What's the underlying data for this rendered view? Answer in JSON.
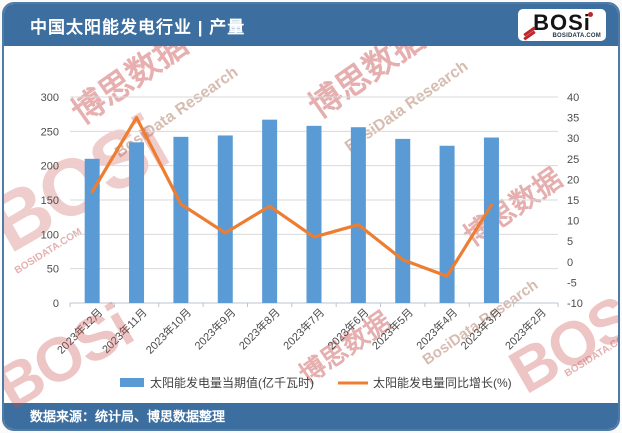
{
  "header": {
    "title": "中国太阳能发电行业 | 产量",
    "logo": {
      "wordmark": "BOSi",
      "domain": "BOSIDATA.COM"
    }
  },
  "footer": {
    "source_label": "数据来源：统计局、博思数据整理"
  },
  "watermarks": {
    "brand_cn": "博思数据",
    "brand_en": "BosiData Research",
    "logo": "BOSi",
    "domain": "BOSIDATA.COM"
  },
  "colors": {
    "header_bg": "#3C6E9F",
    "bar": "#5B9BD5",
    "line": "#ED7D31",
    "grid": "#D9D9D9",
    "axis": "#B9C4D2",
    "tick_text": "#4D4D4D",
    "watermark": "#C94F4F"
  },
  "chart_data": {
    "type": "bar",
    "title": "中国太阳能发电行业 | 产量",
    "categories": [
      "2023年12月",
      "2023年11月",
      "2023年10月",
      "2023年9月",
      "2023年8月",
      "2023年7月",
      "2023年6月",
      "2023年5月",
      "2023年4月",
      "2023年3月",
      "2023年2月"
    ],
    "series": [
      {
        "name": "太阳能发电量当期值(亿千瓦时)",
        "type": "bar",
        "axis": "left",
        "color": "#5B9BD5",
        "values": [
          210,
          234,
          242,
          244,
          267,
          258,
          256,
          239,
          229,
          241,
          null
        ]
      },
      {
        "name": "太阳能发电量同比增长(%)",
        "type": "line",
        "axis": "right",
        "color": "#ED7D31",
        "values": [
          17,
          35,
          14,
          7,
          13.5,
          6,
          9,
          0.5,
          -3.5,
          13.8,
          null
        ]
      }
    ],
    "left_axis": {
      "min": 0,
      "max": 300,
      "step": 50
    },
    "right_axis": {
      "min": -10,
      "max": 40,
      "step": 5
    },
    "grid": true,
    "legend_position": "bottom"
  }
}
